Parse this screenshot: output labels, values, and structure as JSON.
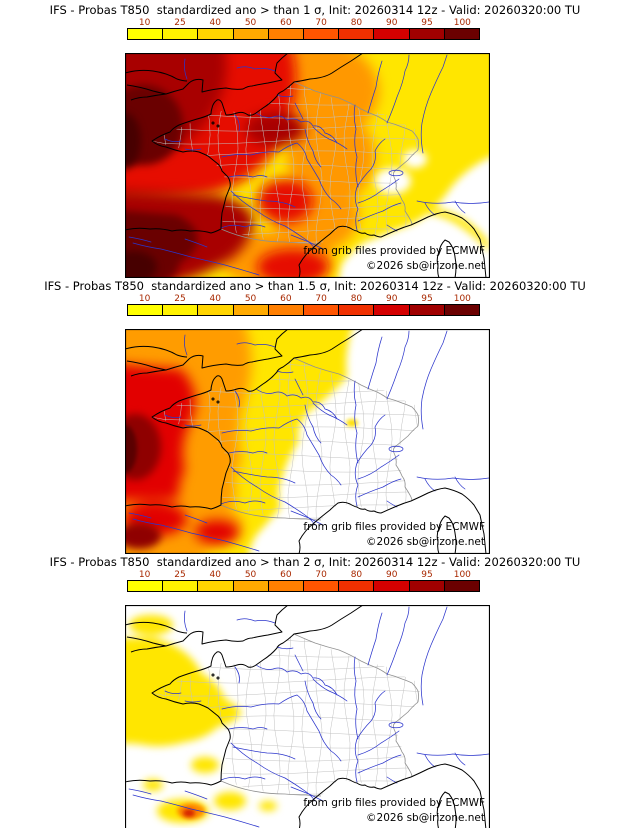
{
  "colorbar": {
    "ticks": [
      "10",
      "25",
      "40",
      "50",
      "60",
      "70",
      "80",
      "90",
      "95",
      "100"
    ],
    "colors": [
      "#ffff00",
      "#fff200",
      "#ffd400",
      "#ffaa00",
      "#ff7f00",
      "#ff5500",
      "#f03000",
      "#d40000",
      "#a00000",
      "#6b0000"
    ],
    "tick_color": "#a82800"
  },
  "panels": [
    {
      "title": "IFS - Probas T850  standardized ano > than 1 σ, Init: 20260314 12z - Valid: 20260320:00 TU"
    },
    {
      "title": "IFS - Probas T850  standardized ano > than 1.5 σ, Init: 20260314 12z - Valid: 20260320:00 TU"
    },
    {
      "title": "IFS - Probas T850  standardized ano > than 2 σ, Init: 20260314 12z - Valid: 20260320:00 TU"
    }
  ],
  "attribution": {
    "source": "from grib files provided by ECMWF",
    "copyright": "©2026 sb@irizone.net"
  }
}
